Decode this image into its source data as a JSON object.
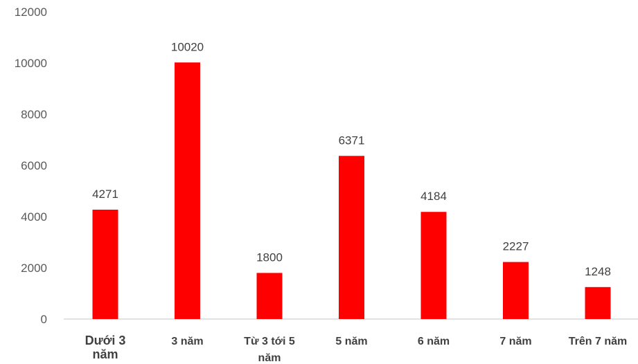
{
  "chart_data": {
    "type": "bar",
    "title": "",
    "xlabel": "",
    "ylabel": "",
    "categories": [
      [
        "Dưới 3",
        "năm"
      ],
      [
        "3 năm"
      ],
      [
        "Từ 3 tới 5",
        "năm"
      ],
      [
        "5 năm"
      ],
      [
        "6 năm"
      ],
      [
        "7 năm"
      ],
      [
        "Trên 7 năm"
      ]
    ],
    "values": [
      4271,
      10020,
      1800,
      6371,
      4184,
      2227,
      1248
    ],
    "ylim": [
      0,
      12000
    ],
    "yticks": [
      0,
      2000,
      4000,
      6000,
      8000,
      10000,
      12000
    ],
    "ytick_labels": [
      "0",
      "2000",
      "4000",
      "6000",
      "8000",
      "10000",
      "12000"
    ],
    "data_labels": [
      "4271",
      "10020",
      "1800",
      "6371",
      "4184",
      "2227",
      "1248"
    ],
    "bar_color": "#ff0000",
    "grid": false,
    "legend": "none"
  }
}
